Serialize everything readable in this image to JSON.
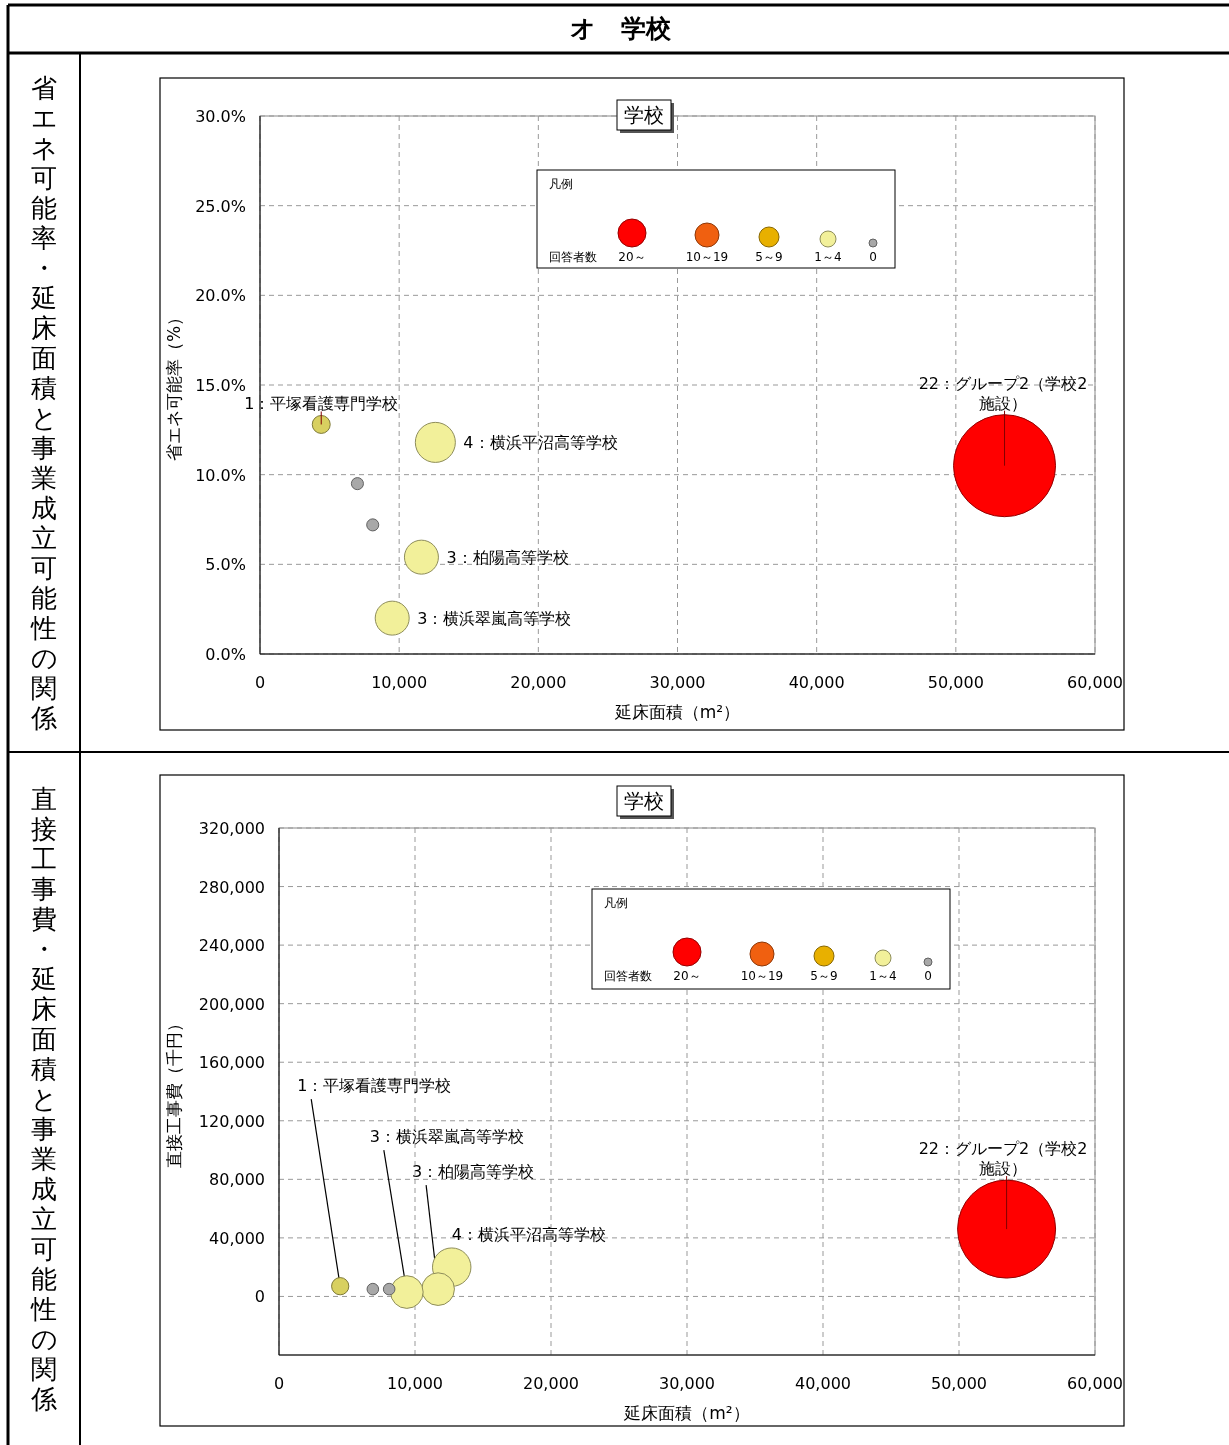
{
  "chart_data": [
    {
      "type": "bubble",
      "title": "学校",
      "subtitle": "省エネ可能率・延床面積と事業成立可能性の関係",
      "xlabel": "延床面積（m²）",
      "ylabel": "省エネ可能率（%）",
      "xlim": [
        0,
        60000
      ],
      "xticks": [
        0,
        {
          "value": 10000,
          "label": "10,000"
        },
        {
          "value": 20000,
          "label": "20,000"
        },
        {
          "value": 30000,
          "label": "30,000"
        },
        {
          "value": 40000,
          "label": "40,000"
        },
        {
          "value": 50000,
          "label": "50,000"
        },
        {
          "value": 60000,
          "label": "60,000"
        }
      ],
      "ylim": [
        0,
        30
      ],
      "yticks": [
        {
          "value": 0,
          "label": "0.0%"
        },
        {
          "value": 5,
          "label": "5.0%"
        },
        {
          "value": 10,
          "label": "10.0%"
        },
        {
          "value": 15,
          "label": "15.0%"
        },
        {
          "value": 20,
          "label": "20.0%"
        },
        {
          "value": 25,
          "label": "25.0%"
        },
        {
          "value": 30,
          "label": "30.0%"
        }
      ],
      "grid": true,
      "legend": "top",
      "legend_title": "凡例",
      "series": [
        {
          "name": "20～",
          "color": "#ff0000",
          "x": [
            53500
          ],
          "values": [
            10.5
          ],
          "sizes": [
            1
          ]
        },
        {
          "name": "10～19",
          "color": "#f06010"
        },
        {
          "name": "5～9",
          "color": "#e8b000"
        },
        {
          "name": "1～4",
          "color": "#f2f09a",
          "colors": [
            "#d8d060",
            "#f2f09a",
            "#f2f09a",
            "#f2f09a"
          ],
          "x": [
            4400,
            12600,
            11600,
            9500
          ],
          "values": [
            12.8,
            11.8,
            5.4,
            2.0
          ],
          "sizes": [
            0.031,
            0.154,
            0.111,
            0.111
          ]
        },
        {
          "name": "0",
          "color": "#a8a8a8",
          "x": [
            7000,
            8100
          ],
          "values": [
            9.5,
            7.2
          ],
          "sizes": [
            0.014,
            0.014
          ]
        }
      ],
      "annotations": [
        "オ　学校",
        "回答者数",
        {
          "text": "1：平塚看護専門学校",
          "x": 4400,
          "y": 12.8
        },
        {
          "text": "4：横浜平沼高等学校",
          "x": 12600,
          "y": 11.8
        },
        {
          "text": "3：柏陽高等学校",
          "x": 11600,
          "y": 5.4
        },
        {
          "text": "3：横浜翠嵐高等学校",
          "x": 9500,
          "y": 2.0
        },
        {
          "text": "22：グループ2（学校2施設）",
          "x": 53500,
          "y": 10.5
        }
      ]
    },
    {
      "type": "bubble",
      "title": "学校",
      "subtitle": "直接工事費・延床面積と事業成立可能性の関係",
      "xlabel": "延床面積（m²）",
      "ylabel": "直接工事費（千円）",
      "xlim": [
        0,
        60000
      ],
      "xticks": [
        0,
        {
          "value": 10000,
          "label": "10,000"
        },
        {
          "value": 20000,
          "label": "20,000"
        },
        {
          "value": 30000,
          "label": "30,000"
        },
        {
          "value": 40000,
          "label": "40,000"
        },
        {
          "value": 50000,
          "label": "50,000"
        },
        {
          "value": 60000,
          "label": "60,000"
        }
      ],
      "ylim": [
        -40000,
        320000
      ],
      "yticks": [
        0,
        {
          "value": 40000,
          "label": "40,000"
        },
        {
          "value": 80000,
          "label": "80,000"
        },
        {
          "value": 120000,
          "label": "120,000"
        },
        {
          "value": 160000,
          "label": "160,000"
        },
        {
          "value": 200000,
          "label": "200,000"
        },
        {
          "value": 240000,
          "label": "240,000"
        },
        {
          "value": 280000,
          "label": "280,000"
        },
        {
          "value": 320000,
          "label": "320,000"
        }
      ],
      "grid": true,
      "legend": "top",
      "legend_title": "凡例",
      "series": [
        {
          "name": "20～",
          "color": "#ff0000",
          "x": [
            53500
          ],
          "values": [
            46000
          ],
          "sizes": [
            1
          ]
        },
        {
          "name": "10～19",
          "color": "#f06010"
        },
        {
          "name": "5～9",
          "color": "#e8b000"
        },
        {
          "name": "1～4",
          "color": "#f2f09a",
          "colors": [
            "#d8d060",
            "#f2f09a",
            "#f2f09a",
            "#f2f09a"
          ],
          "x": [
            4500,
            12700,
            11700,
            9400
          ],
          "values": [
            7000,
            20000,
            5000,
            3000
          ],
          "sizes": [
            0.031,
            0.154,
            0.111,
            0.111
          ]
        },
        {
          "name": "0",
          "color": "#a8a8a8",
          "x": [
            6900,
            8100
          ],
          "values": [
            5000,
            5000
          ],
          "sizes": [
            0.014,
            0.014
          ]
        }
      ],
      "annotations": [
        "回答者数",
        {
          "text": "1：平塚看護専門学校",
          "x": 4500,
          "y": 7000
        },
        {
          "text": "4：横浜平沼高等学校",
          "x": 12700,
          "y": 20000
        },
        {
          "text": "3：柏陽高等学校",
          "x": 11700,
          "y": 5000
        },
        {
          "text": "3：横浜翠嵐高等学校",
          "x": 9400,
          "y": 3000
        },
        {
          "text": "22：グループ2（学校2施設）",
          "x": 53500,
          "y": 46000
        }
      ]
    }
  ]
}
